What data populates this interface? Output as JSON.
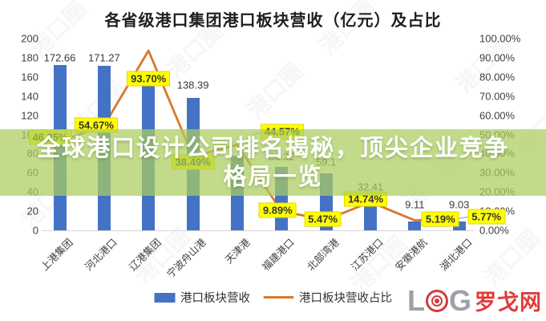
{
  "title": "各省级港口集团港口板块营收（亿元）及占比",
  "banner": {
    "line1": "全球港口设计公司排名揭秘，顶尖企业竞争",
    "line2": "格局一览",
    "bg_color": "rgba(171,205,94,0.72)",
    "text_color": "#ffffff"
  },
  "legend": {
    "bar_label": "港口板块营收",
    "line_label": "港口板块营收占比"
  },
  "logo": {
    "letter_l": "L",
    "letter_g": "G",
    "brand": "罗戈网",
    "icon": "target-rings-icon",
    "grey_color": "#9fa0a8",
    "red_color": "#d43c3c"
  },
  "watermark_text": "港口圈",
  "colors": {
    "bar_blue": "#4472c4",
    "line_orange": "#d9782d",
    "label_yellow": "#ffff00",
    "axis_text": "#3f3f3f"
  },
  "chart_data": {
    "type": "bar",
    "subtype": "bar-line-combo",
    "title": "各省级港口集团港口板块营收（亿元）及占比",
    "categories": [
      "上港集团",
      "河北港口",
      "辽港集团",
      "宁波舟山港",
      "天津港",
      "福建港口",
      "北部湾港",
      "江苏港口",
      "安徽港航",
      "湖北港口"
    ],
    "series": [
      {
        "name": "港口板块营收",
        "type": "bar",
        "axis": "left",
        "unit": "亿元",
        "color": "#4472c4",
        "values": [
          172.66,
          171.27,
          154,
          138.39,
          78,
          66.32,
          59.1,
          32.41,
          9.11,
          9.03
        ],
        "value_labels": [
          "172.66",
          "171.27",
          "",
          "138.39",
          "",
          "66.32",
          "59.1",
          "32.41",
          "9.11",
          "9.03"
        ]
      },
      {
        "name": "港口板块营收占比",
        "type": "line",
        "axis": "right",
        "color": "#d9782d",
        "values": [
          46.25,
          54.67,
          93.7,
          38.49,
          44.57,
          9.89,
          5.47,
          14.74,
          5.19,
          5.77
        ],
        "value_labels": [
          "46.25%",
          "54.67%",
          "93.70%",
          "38.49%",
          "44.57%",
          "9.89%",
          "5.47%",
          "14.74%",
          "5.19%",
          "5.77%"
        ]
      }
    ],
    "left_axis": {
      "min": 0,
      "max": 200,
      "step": 20
    },
    "right_axis": {
      "min": 0,
      "max": 100,
      "step": 10,
      "tick_format": "0.00%"
    },
    "grid": false,
    "legend_position": "bottom",
    "category_label_rotation_deg": -45
  }
}
